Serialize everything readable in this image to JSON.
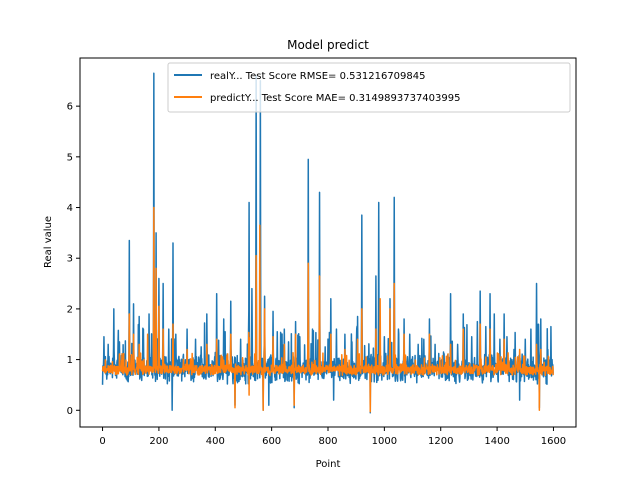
{
  "chart_data": {
    "type": "line",
    "title": "Model predict",
    "xlabel": "Point",
    "ylabel": "Real value",
    "xlim": [
      -80,
      1680
    ],
    "ylim": [
      -0.33,
      6.95
    ],
    "xticks": [
      0,
      200,
      400,
      600,
      800,
      1000,
      1200,
      1400,
      1600
    ],
    "yticks": [
      0,
      1,
      2,
      3,
      4,
      5,
      6
    ],
    "grid": false,
    "legend_position": "top-right",
    "n_points": 1600,
    "colors": {
      "realY": "#1f77b4",
      "predictY": "#ff7f0e"
    },
    "series": [
      {
        "name": "realY... Test Score RMSE= 0.531216709845",
        "baseline": 0.82,
        "noise_amplitude": 0.33,
        "peaks": [
          [
            5,
            1.45
          ],
          [
            20,
            1.3
          ],
          [
            40,
            2.0
          ],
          [
            60,
            1.35
          ],
          [
            75,
            1.1
          ],
          [
            95,
            3.35
          ],
          [
            110,
            2.1
          ],
          [
            130,
            1.85
          ],
          [
            145,
            1.6
          ],
          [
            165,
            1.9
          ],
          [
            182,
            6.65
          ],
          [
            190,
            3.5
          ],
          [
            200,
            2.6
          ],
          [
            215,
            2.5
          ],
          [
            235,
            1.6
          ],
          [
            250,
            3.3
          ],
          [
            260,
            1.5
          ],
          [
            300,
            1.6
          ],
          [
            330,
            1.4
          ],
          [
            350,
            1.25
          ],
          [
            370,
            1.9
          ],
          [
            405,
            2.3
          ],
          [
            430,
            1.8
          ],
          [
            455,
            2.15
          ],
          [
            470,
            0.1
          ],
          [
            490,
            1.4
          ],
          [
            520,
            4.1
          ],
          [
            530,
            2.4
          ],
          [
            545,
            6.6
          ],
          [
            560,
            6.5
          ],
          [
            575,
            2.25
          ],
          [
            590,
            1.3
          ],
          [
            605,
            1.95
          ],
          [
            620,
            1.55
          ],
          [
            645,
            1.6
          ],
          [
            660,
            1.35
          ],
          [
            685,
            1.75
          ],
          [
            700,
            1.45
          ],
          [
            730,
            4.95
          ],
          [
            745,
            1.6
          ],
          [
            770,
            4.3
          ],
          [
            790,
            1.25
          ],
          [
            810,
            2.2
          ],
          [
            830,
            1.6
          ],
          [
            860,
            1.5
          ],
          [
            885,
            1.35
          ],
          [
            905,
            1.85
          ],
          [
            920,
            3.85
          ],
          [
            950,
            1.1
          ],
          [
            970,
            2.65
          ],
          [
            980,
            4.1
          ],
          [
            1000,
            1.45
          ],
          [
            1020,
            2.2
          ],
          [
            1035,
            4.2
          ],
          [
            1050,
            1.6
          ],
          [
            1070,
            1.8
          ],
          [
            1090,
            1.5
          ],
          [
            1120,
            1.3
          ],
          [
            1140,
            1.4
          ],
          [
            1160,
            1.8
          ],
          [
            1180,
            1.3
          ],
          [
            1210,
            1.15
          ],
          [
            1235,
            2.3
          ],
          [
            1260,
            1.3
          ],
          [
            1280,
            1.9
          ],
          [
            1310,
            1.45
          ],
          [
            1330,
            1.75
          ],
          [
            1340,
            2.35
          ],
          [
            1360,
            1.65
          ],
          [
            1375,
            2.3
          ],
          [
            1390,
            1.9
          ],
          [
            1410,
            1.4
          ],
          [
            1425,
            1.9
          ],
          [
            1435,
            1.45
          ],
          [
            1460,
            1.2
          ],
          [
            1480,
            1.5
          ],
          [
            1500,
            1.4
          ],
          [
            1520,
            1.6
          ],
          [
            1540,
            2.5
          ],
          [
            1555,
            1.8
          ],
          [
            1580,
            1.2
          ],
          [
            1595,
            1.0
          ]
        ],
        "dips": [
          [
            247,
            0.0
          ],
          [
            470,
            0.1
          ],
          [
            570,
            0.0
          ],
          [
            590,
            0.1
          ],
          [
            680,
            0.05
          ],
          [
            820,
            0.2
          ],
          [
            950,
            -0.05
          ],
          [
            1480,
            0.2
          ],
          [
            1550,
            0.05
          ]
        ]
      },
      {
        "name": "predictY... Test Score MAE= 0.3149893737403995",
        "baseline": 0.8,
        "noise_amplitude": 0.12,
        "peaks": [
          [
            95,
            1.9
          ],
          [
            110,
            1.5
          ],
          [
            130,
            1.3
          ],
          [
            160,
            1.5
          ],
          [
            182,
            4.0
          ],
          [
            190,
            2.8
          ],
          [
            200,
            2.05
          ],
          [
            215,
            1.6
          ],
          [
            250,
            1.7
          ],
          [
            300,
            1.2
          ],
          [
            370,
            1.3
          ],
          [
            405,
            1.4
          ],
          [
            455,
            1.5
          ],
          [
            520,
            2.9
          ],
          [
            545,
            3.05
          ],
          [
            558,
            3.65
          ],
          [
            575,
            2.0
          ],
          [
            605,
            1.45
          ],
          [
            645,
            1.3
          ],
          [
            685,
            1.5
          ],
          [
            730,
            2.9
          ],
          [
            770,
            2.65
          ],
          [
            810,
            1.5
          ],
          [
            860,
            1.2
          ],
          [
            905,
            1.4
          ],
          [
            920,
            2.0
          ],
          [
            970,
            1.6
          ],
          [
            985,
            2.2
          ],
          [
            1020,
            2.0
          ],
          [
            1035,
            2.5
          ],
          [
            1070,
            1.5
          ],
          [
            1160,
            1.5
          ],
          [
            1235,
            1.3
          ],
          [
            1280,
            1.6
          ],
          [
            1340,
            1.7
          ],
          [
            1375,
            1.6
          ],
          [
            1425,
            1.4
          ],
          [
            1480,
            1.2
          ],
          [
            1540,
            1.3
          ],
          [
            1555,
            1.2
          ]
        ],
        "dips": [
          [
            470,
            0.05
          ],
          [
            520,
            0.3
          ],
          [
            570,
            0.0
          ],
          [
            680,
            0.1
          ],
          [
            950,
            -0.03
          ],
          [
            1550,
            0.0
          ]
        ]
      }
    ]
  }
}
